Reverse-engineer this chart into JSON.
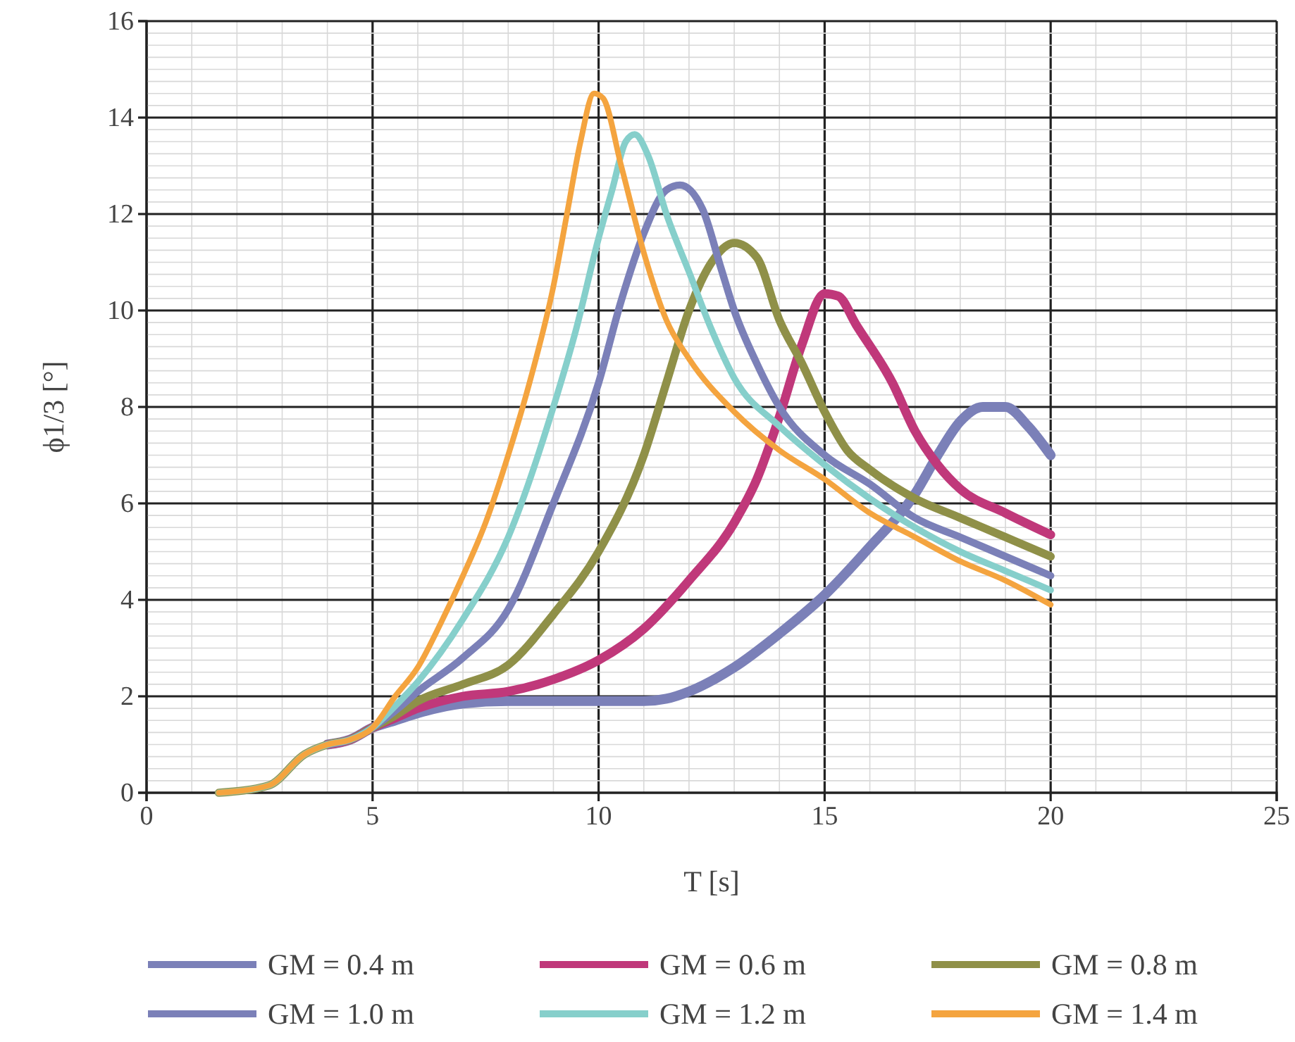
{
  "chart_data": {
    "type": "line",
    "xlabel": "T [s]",
    "ylabel": "ϕ1/3 [°]",
    "xlim": [
      0,
      25
    ],
    "xticks": [
      0,
      5,
      10,
      15,
      20,
      25
    ],
    "ylim": [
      0,
      16
    ],
    "yticks": [
      0,
      2,
      4,
      6,
      8,
      10,
      12,
      14,
      16
    ],
    "grid": true,
    "legend": "bottom",
    "line_style": "solid",
    "marker": "none",
    "series": [
      {
        "name": "GM = 0.4 m",
        "color": "#7b80b8",
        "x": [
          4,
          4.5,
          5,
          5.5,
          6,
          7,
          8,
          10,
          11,
          11.5,
          12,
          13,
          14,
          15,
          16,
          17,
          17.5,
          18,
          18.5,
          19,
          19.5,
          20
        ],
        "values": [
          1,
          1.1,
          1.35,
          1.5,
          1.65,
          1.85,
          1.9,
          1.9,
          1.9,
          1.95,
          2.1,
          2.6,
          3.3,
          4.1,
          5.1,
          6.2,
          7,
          7.7,
          8,
          8,
          7.6,
          7
        ]
      },
      {
        "name": "GM = 0.6 m",
        "color": "#c0387a",
        "x": [
          4,
          4.5,
          5,
          5.5,
          6,
          7,
          8,
          9,
          10,
          11,
          12,
          13,
          13.5,
          14,
          14.5,
          15,
          15.3,
          15.7,
          16.5,
          17,
          17.5,
          18,
          19,
          20
        ],
        "values": [
          1,
          1.1,
          1.35,
          1.55,
          1.75,
          2,
          2.1,
          2.35,
          2.75,
          3.4,
          4.4,
          5.6,
          6.5,
          7.8,
          9.3,
          10.35,
          10.3,
          9.7,
          8.5,
          7.5,
          6.8,
          6.3,
          5.8,
          5.35
        ]
      },
      {
        "name": "GM = 0.8 m",
        "color": "#8f9048",
        "x": [
          1.6,
          2.7,
          3.5,
          4,
          4.5,
          5,
          5.5,
          6,
          7,
          8,
          9,
          10,
          11,
          11.5,
          12,
          12.5,
          13,
          13.5,
          14,
          14.5,
          15,
          15.5,
          16,
          17,
          18,
          19,
          20
        ],
        "values": [
          0,
          0.15,
          0.8,
          1,
          1.1,
          1.35,
          1.6,
          1.9,
          2.25,
          2.65,
          3.7,
          5,
          7,
          8.5,
          10,
          11,
          11.4,
          11.1,
          9.8,
          8.9,
          7.9,
          7.1,
          6.7,
          6.1,
          5.7,
          5.3,
          4.9
        ]
      },
      {
        "name": "GM = 1.0 m",
        "color": "#7b80b8",
        "x": [
          4,
          4.5,
          5,
          5.5,
          6,
          7,
          8,
          9,
          10,
          10.5,
          11,
          11.5,
          11.8,
          12.3,
          12.7,
          13,
          13.5,
          14,
          15,
          16,
          17,
          18,
          19,
          20
        ],
        "values": [
          1,
          1.1,
          1.35,
          1.7,
          2.1,
          2.8,
          3.8,
          6,
          8.5,
          10.2,
          11.6,
          12.5,
          12.6,
          12.1,
          10.9,
          10,
          8.9,
          8,
          7,
          6.4,
          5.7,
          5.3,
          4.9,
          4.5
        ]
      },
      {
        "name": "GM = 1.2 m",
        "color": "#86cfcb",
        "x": [
          1.6,
          2.7,
          3.5,
          4,
          4.5,
          5,
          5.5,
          6,
          7,
          8,
          9,
          9.5,
          10,
          10.3,
          10.6,
          10.8,
          11.1,
          11.5,
          12,
          12.5,
          13,
          14,
          15,
          16,
          17,
          18,
          19,
          20
        ],
        "values": [
          0,
          0.15,
          0.8,
          1,
          1.1,
          1.35,
          1.8,
          2.3,
          3.6,
          5.3,
          8,
          9.6,
          11.5,
          12.5,
          13.5,
          13.65,
          13.2,
          12,
          10.8,
          9.6,
          8.6,
          7.6,
          6.8,
          6.1,
          5.5,
          5,
          4.6,
          4.2
        ]
      },
      {
        "name": "GM = 1.4 m",
        "color": "#f4a43f",
        "x": [
          1.6,
          2.7,
          3.5,
          4,
          4.5,
          5,
          5.5,
          6,
          6.5,
          7,
          7.5,
          8,
          8.5,
          9,
          9.3,
          9.6,
          9.9,
          10.1,
          10.5,
          11,
          11.5,
          12,
          13,
          14,
          15,
          16,
          17,
          18,
          19,
          20
        ],
        "values": [
          0,
          0.15,
          0.8,
          1,
          1.1,
          1.35,
          2,
          2.6,
          3.5,
          4.5,
          5.6,
          7,
          8.6,
          10.5,
          12,
          13.5,
          14.5,
          14.4,
          13,
          11.2,
          9.8,
          9,
          7.9,
          7.1,
          6.5,
          5.8,
          5.3,
          4.8,
          4.4,
          3.9
        ]
      }
    ]
  }
}
